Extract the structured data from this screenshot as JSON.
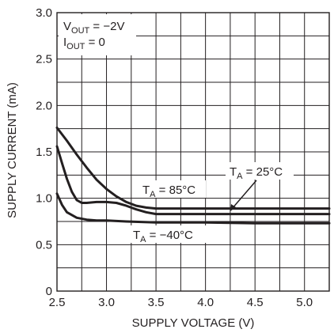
{
  "chart_data": {
    "type": "line",
    "xlabel": "SUPPLY VOLTAGE (V)",
    "ylabel": "SUPPLY CURRENT (mA)",
    "xlim": [
      2.5,
      5.25
    ],
    "ylim": [
      0,
      3.0
    ],
    "x_ticks": [
      "2.5",
      "3.0",
      "3.5",
      "4.0",
      "4.5",
      "5.0"
    ],
    "y_ticks": [
      "0",
      "0.5",
      "1.0",
      "1.5",
      "2.0",
      "2.5",
      "3.0"
    ],
    "grid": true,
    "conditions": [
      {
        "name": "V",
        "sub": "OUT",
        "value": " = −2V"
      },
      {
        "name": "I",
        "sub": "OUT",
        "value": " = 0"
      }
    ],
    "series": [
      {
        "label": {
          "name": "T",
          "sub": "A",
          "value": " = 85°C"
        },
        "x": [
          2.5,
          2.6,
          2.7,
          2.8,
          2.9,
          3.0,
          3.1,
          3.2,
          3.3,
          3.4,
          3.5,
          3.7,
          4.0,
          4.5,
          5.0,
          5.25
        ],
        "y": [
          1.76,
          1.62,
          1.47,
          1.33,
          1.2,
          1.1,
          1.02,
          0.96,
          0.92,
          0.9,
          0.89,
          0.89,
          0.89,
          0.89,
          0.89,
          0.89
        ]
      },
      {
        "label": {
          "name": "T",
          "sub": "A",
          "value": " = 25°C"
        },
        "x": [
          2.5,
          2.55,
          2.6,
          2.65,
          2.7,
          2.75,
          2.8,
          2.9,
          3.0,
          3.1,
          3.2,
          3.3,
          3.4,
          3.5,
          4.0,
          4.5,
          5.0,
          5.25
        ],
        "y": [
          1.56,
          1.38,
          1.21,
          1.07,
          0.98,
          0.95,
          0.95,
          0.96,
          0.96,
          0.95,
          0.92,
          0.88,
          0.85,
          0.83,
          0.83,
          0.83,
          0.83,
          0.83
        ]
      },
      {
        "label": {
          "name": "T",
          "sub": "A",
          "value": " = −40°C"
        },
        "x": [
          2.5,
          2.55,
          2.6,
          2.7,
          2.8,
          2.9,
          3.0,
          3.2,
          3.5,
          4.0,
          4.5,
          5.0,
          5.25
        ],
        "y": [
          1.05,
          0.93,
          0.85,
          0.79,
          0.77,
          0.76,
          0.76,
          0.75,
          0.74,
          0.74,
          0.73,
          0.73,
          0.73
        ]
      }
    ]
  }
}
